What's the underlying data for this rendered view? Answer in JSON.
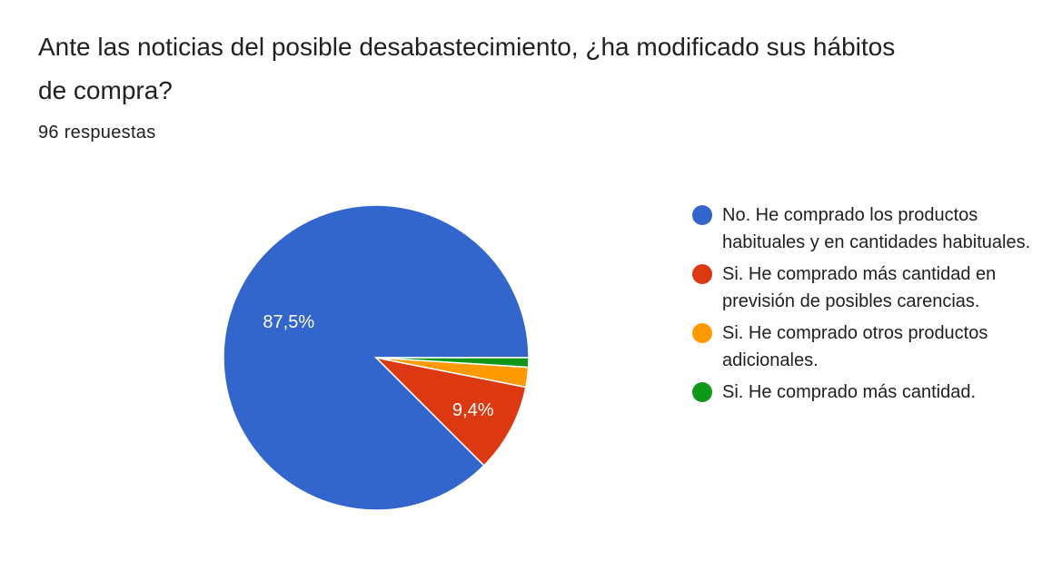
{
  "header": {
    "title": "Ante las noticias del posible desabastecimiento, ¿ha modificado sus hábitos de compra?",
    "responses": "96 respuestas"
  },
  "chart_data": {
    "type": "pie",
    "title": "Ante las noticias del posible desabastecimiento, ¿ha modificado sus hábitos de compra?",
    "legend_position": "right",
    "start_angle_deg": 0,
    "direction": "counterclockwise",
    "slices": [
      {
        "label": "No. He comprado los productos habituales y en cantidades habituales.",
        "value": 87.5,
        "display": "87,5%",
        "color": "#3366cc"
      },
      {
        "label": "Si. He comprado más cantidad en previsión de posibles carencias.",
        "value": 9.4,
        "display": "9,4%",
        "color": "#dc3912"
      },
      {
        "label": "Si. He comprado otros productos adicionales.",
        "value": 2.1,
        "display": "",
        "color": "#ff9900"
      },
      {
        "label": "Si. He comprado más cantidad.",
        "value": 1.0,
        "display": "",
        "color": "#109618"
      }
    ]
  }
}
